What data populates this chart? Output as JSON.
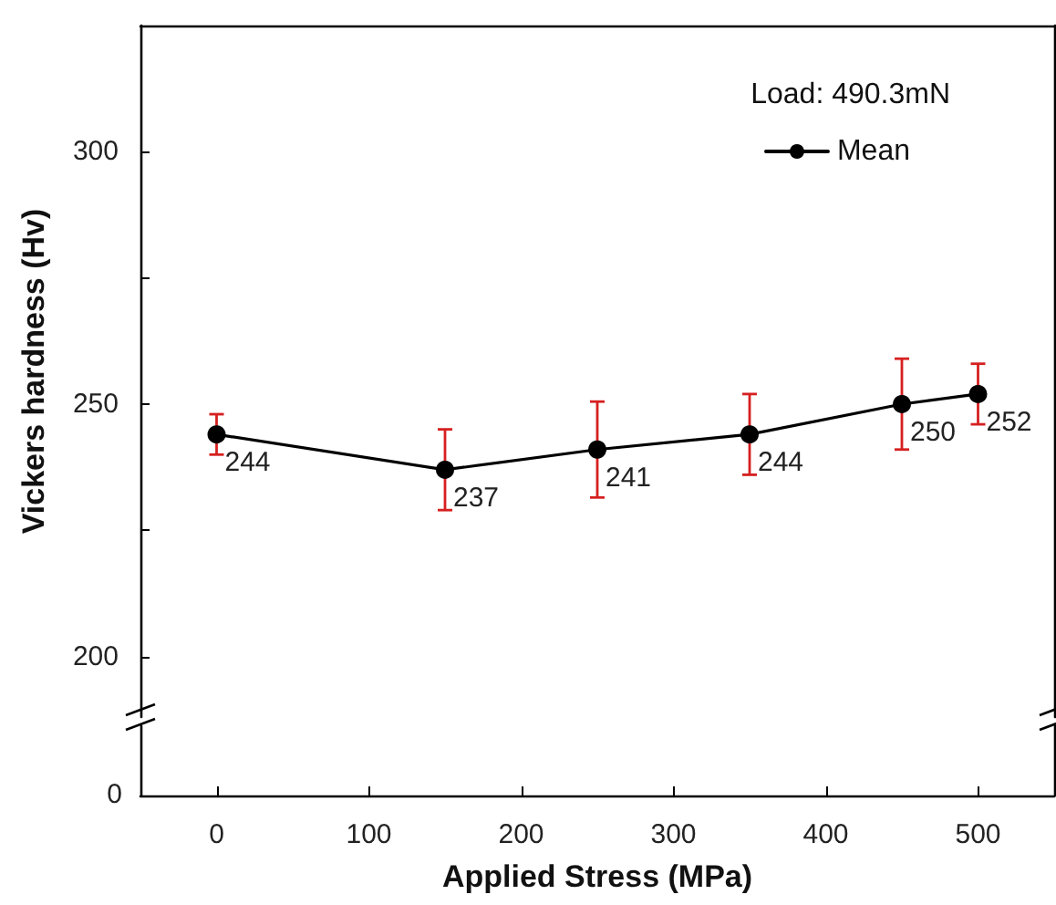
{
  "chart_data": {
    "type": "line",
    "ylabel": "Vickers hardness (Hv)",
    "xlabel": "Applied Stress (MPa)",
    "legend_title": "Load: 490.3mN",
    "annotations": [
      "0"
    ],
    "x": [
      0,
      150,
      250,
      350,
      450,
      500
    ],
    "series": [
      {
        "name": "Mean",
        "color": "#000000",
        "values": [
          244,
          237,
          241,
          244,
          250,
          252
        ],
        "errors": [
          4,
          8,
          9.5,
          8,
          9,
          6
        ]
      }
    ],
    "data_labels": true,
    "marker": "circle",
    "line_style": "solid",
    "legend": "top right",
    "xlim": [
      -50,
      550
    ],
    "xticks": [
      0,
      100,
      200,
      300,
      400,
      500
    ],
    "ylim": [
      188,
      325
    ],
    "yticks": [
      200,
      {
        "value": 225,
        "label": null
      },
      250,
      {
        "value": 275,
        "label": null
      },
      300
    ]
  }
}
